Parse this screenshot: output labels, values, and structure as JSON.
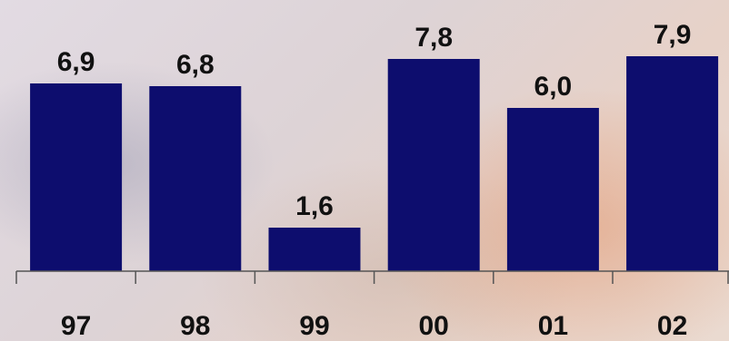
{
  "chart_data": {
    "type": "bar",
    "categories": [
      "97",
      "98",
      "99",
      "00",
      "01",
      "02"
    ],
    "values": [
      6.9,
      6.8,
      1.6,
      7.8,
      6.0,
      7.9
    ],
    "value_labels": [
      "6,9",
      "6,8",
      "1,6",
      "7,8",
      "6,0",
      "7,9"
    ],
    "title": "",
    "xlabel": "",
    "ylabel": "",
    "ylim": [
      0,
      10
    ],
    "grid": false,
    "legend": "none",
    "bar_color": "#0d0d6e"
  }
}
